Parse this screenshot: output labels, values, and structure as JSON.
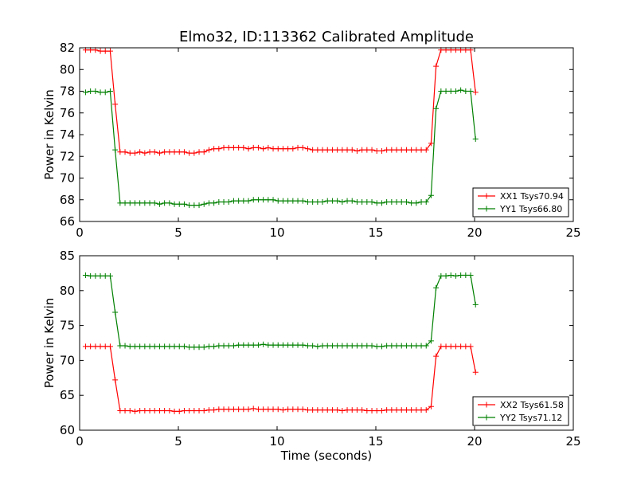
{
  "title": "Elmo32, ID:113362 Calibrated Amplitude",
  "colors": {
    "red": "#ff0000",
    "green": "#008000"
  },
  "chart_data": [
    {
      "type": "line",
      "title": "Elmo32, ID:113362 Calibrated Amplitude",
      "xlabel": "",
      "ylabel": "Power in Kelvin",
      "xlim": [
        0,
        25
      ],
      "ylim": [
        66,
        82
      ],
      "xticks": [
        0,
        5,
        10,
        15,
        20,
        25
      ],
      "yticks": [
        66,
        68,
        70,
        72,
        74,
        76,
        78,
        80,
        82
      ],
      "grid": false,
      "legend": "lower-right",
      "x": [
        0.3,
        0.55,
        0.8,
        1.05,
        1.3,
        1.55,
        1.8,
        2.05,
        2.3,
        2.55,
        2.8,
        3.05,
        3.3,
        3.55,
        3.8,
        4.05,
        4.3,
        4.55,
        4.8,
        5.05,
        5.3,
        5.55,
        5.8,
        6.05,
        6.3,
        6.55,
        6.8,
        7.05,
        7.3,
        7.55,
        7.8,
        8.05,
        8.3,
        8.55,
        8.8,
        9.05,
        9.3,
        9.55,
        9.8,
        10.05,
        10.3,
        10.55,
        10.8,
        11.05,
        11.3,
        11.55,
        11.8,
        12.05,
        12.3,
        12.55,
        12.8,
        13.05,
        13.3,
        13.55,
        13.8,
        14.05,
        14.3,
        14.55,
        14.8,
        15.05,
        15.3,
        15.55,
        15.8,
        16.05,
        16.3,
        16.55,
        16.8,
        17.05,
        17.3,
        17.55,
        17.8,
        18.05,
        18.3,
        18.55,
        18.8,
        19.05,
        19.3,
        19.55,
        19.8,
        20.05
      ],
      "series": [
        {
          "name": "XX1 Tsys70.94",
          "color": "#ff0000",
          "values": [
            81.8,
            81.8,
            81.8,
            81.7,
            81.7,
            81.7,
            76.8,
            72.4,
            72.4,
            72.3,
            72.3,
            72.4,
            72.3,
            72.4,
            72.4,
            72.3,
            72.4,
            72.4,
            72.4,
            72.4,
            72.4,
            72.3,
            72.3,
            72.4,
            72.4,
            72.6,
            72.7,
            72.7,
            72.8,
            72.8,
            72.8,
            72.8,
            72.8,
            72.7,
            72.8,
            72.8,
            72.7,
            72.8,
            72.7,
            72.7,
            72.7,
            72.7,
            72.7,
            72.8,
            72.8,
            72.7,
            72.6,
            72.6,
            72.6,
            72.6,
            72.6,
            72.6,
            72.6,
            72.6,
            72.6,
            72.5,
            72.6,
            72.6,
            72.6,
            72.5,
            72.5,
            72.6,
            72.6,
            72.6,
            72.6,
            72.6,
            72.6,
            72.6,
            72.6,
            72.6,
            73.2,
            80.3,
            81.8,
            81.8,
            81.8,
            81.8,
            81.8,
            81.8,
            81.8,
            77.9
          ]
        },
        {
          "name": "YY1 Tsys66.80",
          "color": "#008000",
          "values": [
            77.9,
            78.0,
            78.0,
            77.9,
            77.9,
            78.0,
            72.6,
            67.7,
            67.7,
            67.7,
            67.7,
            67.7,
            67.7,
            67.7,
            67.7,
            67.6,
            67.7,
            67.7,
            67.6,
            67.6,
            67.6,
            67.5,
            67.5,
            67.5,
            67.6,
            67.7,
            67.7,
            67.8,
            67.8,
            67.8,
            67.9,
            67.9,
            67.9,
            67.9,
            68.0,
            68.0,
            68.0,
            68.0,
            68.0,
            67.9,
            67.9,
            67.9,
            67.9,
            67.9,
            67.9,
            67.8,
            67.8,
            67.8,
            67.8,
            67.9,
            67.9,
            67.9,
            67.8,
            67.9,
            67.9,
            67.8,
            67.8,
            67.8,
            67.8,
            67.7,
            67.7,
            67.8,
            67.8,
            67.8,
            67.8,
            67.8,
            67.7,
            67.7,
            67.8,
            67.8,
            68.4,
            76.4,
            78.0,
            78.0,
            78.0,
            78.0,
            78.1,
            78.0,
            78.0,
            73.6
          ]
        }
      ]
    },
    {
      "type": "line",
      "xlabel": "Time (seconds)",
      "ylabel": "Power in Kelvin",
      "xlim": [
        0,
        25
      ],
      "ylim": [
        60,
        85
      ],
      "xticks": [
        0,
        5,
        10,
        15,
        20,
        25
      ],
      "yticks": [
        60,
        65,
        70,
        75,
        80,
        85
      ],
      "grid": false,
      "legend": "lower-right",
      "x": [
        0.3,
        0.55,
        0.8,
        1.05,
        1.3,
        1.55,
        1.8,
        2.05,
        2.3,
        2.55,
        2.8,
        3.05,
        3.3,
        3.55,
        3.8,
        4.05,
        4.3,
        4.55,
        4.8,
        5.05,
        5.3,
        5.55,
        5.8,
        6.05,
        6.3,
        6.55,
        6.8,
        7.05,
        7.3,
        7.55,
        7.8,
        8.05,
        8.3,
        8.55,
        8.8,
        9.05,
        9.3,
        9.55,
        9.8,
        10.05,
        10.3,
        10.55,
        10.8,
        11.05,
        11.3,
        11.55,
        11.8,
        12.05,
        12.3,
        12.55,
        12.8,
        13.05,
        13.3,
        13.55,
        13.8,
        14.05,
        14.3,
        14.55,
        14.8,
        15.05,
        15.3,
        15.55,
        15.8,
        16.05,
        16.3,
        16.55,
        16.8,
        17.05,
        17.3,
        17.55,
        17.8,
        18.05,
        18.3,
        18.55,
        18.8,
        19.05,
        19.3,
        19.55,
        19.8,
        20.05
      ],
      "series": [
        {
          "name": "XX2 Tsys61.58",
          "color": "#ff0000",
          "values": [
            72.0,
            72.0,
            72.0,
            72.0,
            72.0,
            72.0,
            67.2,
            62.8,
            62.8,
            62.8,
            62.7,
            62.8,
            62.8,
            62.8,
            62.8,
            62.8,
            62.8,
            62.8,
            62.7,
            62.7,
            62.8,
            62.8,
            62.8,
            62.8,
            62.8,
            62.9,
            62.9,
            63.0,
            63.0,
            63.0,
            63.0,
            63.0,
            63.0,
            63.0,
            63.1,
            63.0,
            63.0,
            63.0,
            63.0,
            63.0,
            62.9,
            63.0,
            63.0,
            63.0,
            63.0,
            62.9,
            62.9,
            62.9,
            62.9,
            62.9,
            62.9,
            62.9,
            62.8,
            62.9,
            62.9,
            62.9,
            62.9,
            62.8,
            62.8,
            62.8,
            62.8,
            62.9,
            62.9,
            62.9,
            62.9,
            62.9,
            62.9,
            62.9,
            62.9,
            62.9,
            63.4,
            70.6,
            72.0,
            72.0,
            72.0,
            72.0,
            72.0,
            72.0,
            72.0,
            68.3
          ]
        },
        {
          "name": "YY2 Tsys71.12",
          "color": "#008000",
          "values": [
            82.2,
            82.1,
            82.1,
            82.1,
            82.1,
            82.1,
            76.9,
            72.1,
            72.1,
            72.0,
            72.0,
            72.0,
            72.0,
            72.0,
            72.0,
            72.0,
            72.0,
            72.0,
            72.0,
            72.0,
            72.0,
            71.9,
            71.9,
            71.9,
            71.9,
            72.0,
            72.0,
            72.1,
            72.1,
            72.1,
            72.1,
            72.2,
            72.2,
            72.2,
            72.2,
            72.2,
            72.3,
            72.2,
            72.2,
            72.2,
            72.2,
            72.2,
            72.2,
            72.2,
            72.2,
            72.1,
            72.1,
            72.0,
            72.1,
            72.1,
            72.1,
            72.1,
            72.1,
            72.1,
            72.1,
            72.1,
            72.1,
            72.1,
            72.1,
            72.0,
            72.0,
            72.1,
            72.1,
            72.1,
            72.1,
            72.1,
            72.1,
            72.1,
            72.1,
            72.1,
            72.8,
            80.4,
            82.1,
            82.1,
            82.2,
            82.1,
            82.2,
            82.2,
            82.2,
            78.0
          ]
        }
      ]
    }
  ]
}
